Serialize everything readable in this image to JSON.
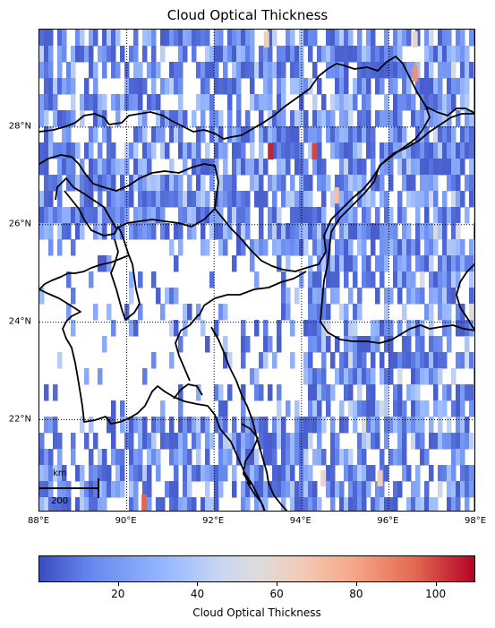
{
  "title": "Cloud Optical Thickness",
  "chart_data": {
    "type": "heatmap",
    "title": "Cloud Optical Thickness",
    "colorbar_label": "Cloud Optical Thickness",
    "colormap": "coolwarm",
    "value_range": [
      0,
      110
    ],
    "colorbar_ticks": [
      20,
      40,
      60,
      80,
      100
    ],
    "lon_range": [
      88,
      98
    ],
    "lat_range": [
      20.1,
      30.0
    ],
    "lon_ticks": [
      88,
      90,
      92,
      94,
      96,
      98
    ],
    "lon_tick_labels": [
      "88°E",
      "90°E",
      "92°E",
      "94°E",
      "96°E",
      "98°E"
    ],
    "lat_ticks": [
      22,
      24,
      26,
      28
    ],
    "lat_tick_labels": [
      "22°N",
      "24°N",
      "26°N",
      "28°N"
    ],
    "grid": "dotted",
    "high_value_spots": [
      {
        "lon": 93.3,
        "lat": 27.5,
        "value": 105
      },
      {
        "lon": 94.3,
        "lat": 27.5,
        "value": 100
      },
      {
        "lon": 96.6,
        "lat": 29.1,
        "value": 85
      },
      {
        "lon": 90.4,
        "lat": 20.3,
        "value": 95
      },
      {
        "lon": 93.2,
        "lat": 29.8,
        "value": 65
      },
      {
        "lon": 96.6,
        "lat": 29.8,
        "value": 60
      },
      {
        "lon": 94.8,
        "lat": 26.6,
        "value": 70
      },
      {
        "lon": 95.8,
        "lat": 20.8,
        "value": 65
      },
      {
        "lon": 94.5,
        "lat": 20.8,
        "value": 60
      }
    ]
  },
  "scalebar": {
    "unit": "km",
    "value": "200"
  }
}
